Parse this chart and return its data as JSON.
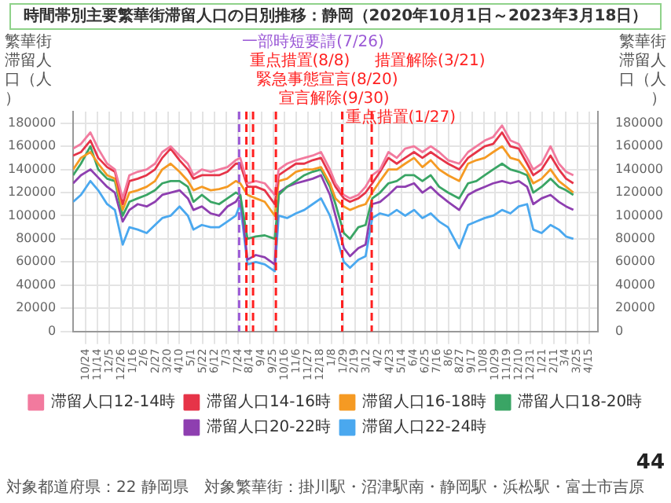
{
  "chart_data": {
    "type": "line",
    "title": "時間帯別主要繁華街滞留人口の日別推移：静岡（2020年10月1日～2023年3月18日）",
    "ylabel": "繁華街滞留人口（人）",
    "y2label": "繁華街滞留人口（人）",
    "x": [
      "2020-10-01",
      "2020-10-15",
      "2020-11-01",
      "2020-11-15",
      "2020-12-01",
      "2020-12-15",
      "2020-12-29",
      "2021-01-10",
      "2021-01-25",
      "2021-02-10",
      "2021-02-25",
      "2021-03-10",
      "2021-03-25",
      "2021-04-10",
      "2021-04-25",
      "2021-05-05",
      "2021-05-20",
      "2021-06-05",
      "2021-06-20",
      "2021-07-05",
      "2021-07-20",
      "2021-07-28",
      "2021-08-10",
      "2021-08-25",
      "2021-09-10",
      "2021-09-28",
      "2021-10-05",
      "2021-10-20",
      "2021-11-05",
      "2021-11-20",
      "2021-12-05",
      "2021-12-20",
      "2022-01-05",
      "2022-01-15",
      "2022-01-30",
      "2022-02-10",
      "2022-02-25",
      "2022-03-10",
      "2022-03-22",
      "2022-04-05",
      "2022-04-20",
      "2022-05-05",
      "2022-05-20",
      "2022-06-05",
      "2022-06-20",
      "2022-07-05",
      "2022-07-20",
      "2022-08-05",
      "2022-08-25",
      "2022-09-10",
      "2022-09-25",
      "2022-10-10",
      "2022-10-25",
      "2022-11-10",
      "2022-11-25",
      "2022-12-10",
      "2022-12-25",
      "2023-01-05",
      "2023-01-20",
      "2023-02-05",
      "2023-02-20",
      "2023-03-05",
      "2023-03-18"
    ],
    "series": [
      {
        "name": "滞留人口12-14時",
        "color": "#f27a9e",
        "values": [
          158000,
          162000,
          172000,
          158000,
          145000,
          140000,
          115000,
          135000,
          138000,
          140000,
          145000,
          155000,
          160000,
          152000,
          145000,
          135000,
          140000,
          138000,
          140000,
          142000,
          148000,
          150000,
          128000,
          130000,
          128000,
          118000,
          140000,
          145000,
          148000,
          150000,
          152000,
          155000,
          140000,
          128000,
          118000,
          115000,
          118000,
          125000,
          135000,
          140000,
          155000,
          150000,
          158000,
          160000,
          155000,
          160000,
          155000,
          148000,
          145000,
          155000,
          160000,
          165000,
          168000,
          178000,
          165000,
          162000,
          150000,
          140000,
          145000,
          160000,
          145000,
          138000,
          135000
        ]
      },
      {
        "name": "滞留人口14-16時",
        "color": "#e63448",
        "values": [
          152000,
          155000,
          165000,
          150000,
          142000,
          138000,
          110000,
          130000,
          132000,
          135000,
          140000,
          150000,
          158000,
          148000,
          140000,
          132000,
          135000,
          135000,
          135000,
          138000,
          145000,
          145000,
          125000,
          125000,
          122000,
          110000,
          135000,
          140000,
          145000,
          145000,
          148000,
          150000,
          135000,
          125000,
          115000,
          112000,
          115000,
          120000,
          128000,
          138000,
          150000,
          145000,
          150000,
          155000,
          150000,
          155000,
          150000,
          145000,
          140000,
          150000,
          155000,
          160000,
          162000,
          172000,
          160000,
          158000,
          145000,
          135000,
          140000,
          152000,
          140000,
          132000,
          128000
        ]
      },
      {
        "name": "滞留人口16-18時",
        "color": "#f59a23",
        "values": [
          140000,
          150000,
          155000,
          145000,
          135000,
          132000,
          105000,
          120000,
          122000,
          125000,
          130000,
          140000,
          145000,
          138000,
          130000,
          122000,
          125000,
          122000,
          123000,
          125000,
          130000,
          128000,
          118000,
          115000,
          112000,
          100000,
          130000,
          132000,
          138000,
          140000,
          140000,
          142000,
          128000,
          115000,
          108000,
          105000,
          108000,
          110000,
          120000,
          130000,
          140000,
          140000,
          145000,
          150000,
          142000,
          148000,
          140000,
          135000,
          130000,
          145000,
          148000,
          150000,
          155000,
          160000,
          150000,
          148000,
          138000,
          128000,
          132000,
          140000,
          130000,
          125000,
          120000
        ]
      },
      {
        "name": "滞留人口18-20時",
        "color": "#3aa565",
        "values": [
          135000,
          145000,
          160000,
          140000,
          132000,
          130000,
          100000,
          112000,
          115000,
          118000,
          122000,
          128000,
          130000,
          130000,
          125000,
          112000,
          118000,
          112000,
          110000,
          115000,
          120000,
          118000,
          80000,
          82000,
          83000,
          80000,
          118000,
          125000,
          130000,
          135000,
          138000,
          140000,
          125000,
          110000,
          85000,
          80000,
          90000,
          92000,
          115000,
          120000,
          128000,
          130000,
          135000,
          135000,
          130000,
          135000,
          125000,
          120000,
          115000,
          128000,
          130000,
          135000,
          140000,
          145000,
          140000,
          138000,
          135000,
          120000,
          125000,
          132000,
          125000,
          122000,
          118000
        ]
      },
      {
        "name": "滞留人口20-22時",
        "color": "#8e3fb0",
        "values": [
          128000,
          135000,
          140000,
          133000,
          125000,
          120000,
          95000,
          105000,
          110000,
          108000,
          112000,
          118000,
          120000,
          122000,
          115000,
          105000,
          108000,
          102000,
          100000,
          108000,
          112000,
          118000,
          62000,
          66000,
          64000,
          58000,
          120000,
          125000,
          128000,
          130000,
          132000,
          135000,
          118000,
          100000,
          72000,
          65000,
          72000,
          75000,
          110000,
          112000,
          118000,
          125000,
          125000,
          128000,
          120000,
          125000,
          118000,
          112000,
          105000,
          118000,
          122000,
          125000,
          128000,
          130000,
          128000,
          130000,
          125000,
          110000,
          115000,
          118000,
          112000,
          108000,
          105000
        ]
      },
      {
        "name": "滞留人口22-24時",
        "color": "#4aa8ef",
        "values": [
          112000,
          118000,
          130000,
          122000,
          110000,
          105000,
          75000,
          90000,
          88000,
          85000,
          92000,
          98000,
          100000,
          108000,
          100000,
          88000,
          92000,
          90000,
          90000,
          95000,
          100000,
          110000,
          58000,
          60000,
          58000,
          52000,
          100000,
          98000,
          102000,
          105000,
          110000,
          115000,
          100000,
          85000,
          60000,
          55000,
          62000,
          65000,
          98000,
          102000,
          100000,
          105000,
          100000,
          105000,
          98000,
          102000,
          95000,
          90000,
          72000,
          92000,
          95000,
          98000,
          100000,
          105000,
          102000,
          108000,
          110000,
          88000,
          85000,
          92000,
          88000,
          82000,
          80000
        ]
      }
    ],
    "xlim": [
      "2020-10-01",
      "2023-05-01"
    ],
    "xticks": [
      {
        "value": "2020-10-24",
        "label": "10/24"
      },
      {
        "value": "2020-11-14",
        "label": "11/14"
      },
      {
        "value": "2020-12-05",
        "label": "12/5"
      },
      {
        "value": "2020-12-26",
        "label": "12/26"
      },
      {
        "value": "2021-01-16",
        "label": "1/16"
      },
      {
        "value": "2021-02-06",
        "label": "2/6"
      },
      {
        "value": "2021-02-27",
        "label": "2/27"
      },
      {
        "value": "2021-03-20",
        "label": "3/20"
      },
      {
        "value": "2021-04-10",
        "label": "4/10"
      },
      {
        "value": "2021-05-01",
        "label": "5/1"
      },
      {
        "value": "2021-05-22",
        "label": "5/22"
      },
      {
        "value": "2021-06-12",
        "label": "6/12"
      },
      {
        "value": "2021-07-03",
        "label": "7/3"
      },
      {
        "value": "2021-07-24",
        "label": "7/24"
      },
      {
        "value": "2021-08-14",
        "label": "8/14"
      },
      {
        "value": "2021-09-04",
        "label": "9/4"
      },
      {
        "value": "2021-09-25",
        "label": "9/25"
      },
      {
        "value": "2021-10-16",
        "label": "10/16"
      },
      {
        "value": "2021-11-06",
        "label": "11/6"
      },
      {
        "value": "2021-11-27",
        "label": "11/27"
      },
      {
        "value": "2021-12-18",
        "label": "12/18"
      },
      {
        "value": "2022-01-08",
        "label": "1/8"
      },
      {
        "value": "2022-01-29",
        "label": "1/29"
      },
      {
        "value": "2022-02-19",
        "label": "2/19"
      },
      {
        "value": "2022-03-12",
        "label": "3/12"
      },
      {
        "value": "2022-04-02",
        "label": "4/2"
      },
      {
        "value": "2022-04-23",
        "label": "4/23"
      },
      {
        "value": "2022-05-14",
        "label": "5/14"
      },
      {
        "value": "2022-06-04",
        "label": "6/4"
      },
      {
        "value": "2022-06-25",
        "label": "6/25"
      },
      {
        "value": "2022-07-16",
        "label": "7/16"
      },
      {
        "value": "2022-08-06",
        "label": "8/6"
      },
      {
        "value": "2022-08-27",
        "label": "8/27"
      },
      {
        "value": "2022-09-17",
        "label": "9/17"
      },
      {
        "value": "2022-10-08",
        "label": "10/8"
      },
      {
        "value": "2022-10-29",
        "label": "10/29"
      },
      {
        "value": "2022-11-19",
        "label": "11/19"
      },
      {
        "value": "2022-12-10",
        "label": "12/10"
      },
      {
        "value": "2022-12-31",
        "label": "12/31"
      },
      {
        "value": "2023-01-21",
        "label": "1/21"
      },
      {
        "value": "2023-02-11",
        "label": "2/11"
      },
      {
        "value": "2023-03-04",
        "label": "3/4"
      },
      {
        "value": "2023-03-25",
        "label": "3/25"
      },
      {
        "value": "2023-04-15",
        "label": "4/15"
      }
    ],
    "ylim": [
      0,
      190000
    ],
    "yticks": [
      0,
      20000,
      40000,
      60000,
      80000,
      100000,
      120000,
      140000,
      160000,
      180000
    ],
    "y2lim": [
      0,
      190000
    ],
    "y2ticks": [
      0,
      20000,
      40000,
      60000,
      80000,
      100000,
      120000,
      140000,
      160000,
      180000
    ],
    "ref_lines": [
      {
        "axis": "x",
        "value": "2021-07-26",
        "label": "一部時短要請(7/26)",
        "color": "#9b59d6",
        "line_style": "dashed"
      },
      {
        "axis": "x",
        "value": "2021-08-08",
        "label": "重点措置(8/8)",
        "color": "#ff2020",
        "line_style": "dashed"
      },
      {
        "axis": "x",
        "value": "2021-08-20",
        "label": "緊急事態宣言(8/20)",
        "color": "#ff2020",
        "line_style": "dashed"
      },
      {
        "axis": "x",
        "value": "2021-09-30",
        "label": "宣言解除(9/30)",
        "color": "#ff2020",
        "line_style": "dashed"
      },
      {
        "axis": "x",
        "value": "2022-01-27",
        "label": "重点措置(1/27)",
        "color": "#ff2020",
        "line_style": "dashed"
      },
      {
        "axis": "x",
        "value": "2022-03-21",
        "label": "措置解除(3/21)",
        "color": "#ff2020",
        "line_style": "dashed"
      }
    ],
    "grid": true,
    "legend": "bottom",
    "marker": "none",
    "annotations": [
      "対象都道府県：22 静岡県",
      "対象繁華街：掛川駅・沼津駅南・静岡駅・浜松駅・富士市吉原",
      "44"
    ]
  }
}
